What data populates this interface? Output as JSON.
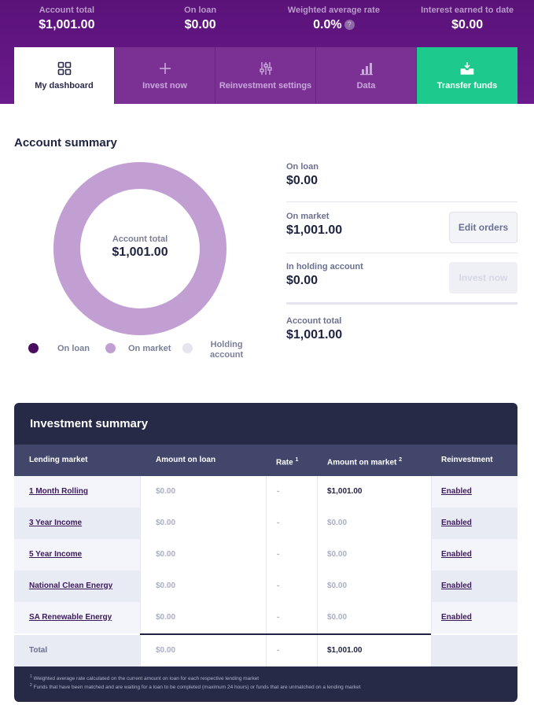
{
  "stats": [
    {
      "label": "Account total",
      "value": "$1,001.00"
    },
    {
      "label": "On loan",
      "value": "$0.00"
    },
    {
      "label": "Weighted average rate",
      "value": "0.0%"
    },
    {
      "label": "Interest earned to date",
      "value": "$0.00"
    }
  ],
  "help_mark": "?",
  "tabs": [
    {
      "label": "My dashboard",
      "icon": "grid-icon"
    },
    {
      "label": "Invest now",
      "icon": "plus-icon"
    },
    {
      "label": "Reinvestment settings",
      "icon": "sliders-icon"
    },
    {
      "label": "Data",
      "icon": "bar-chart-icon"
    },
    {
      "label": "Transfer funds",
      "icon": "inbox-download-icon"
    }
  ],
  "account_summary": {
    "title": "Account summary",
    "donut": {
      "center_label": "Account total",
      "center_value": "$1,001.00",
      "segments": [
        {
          "name": "On loan",
          "value": 0,
          "color": "#4a0c5e"
        },
        {
          "name": "On market",
          "value": 1001,
          "color": "#c19fd2"
        },
        {
          "name": "Holding account",
          "value": 0,
          "color": "#e4e5ee"
        }
      ]
    },
    "legend": {
      "on_loan": "On loan",
      "on_market": "On market",
      "holding_line1": "Holding",
      "holding_line2": "account"
    },
    "rows": [
      {
        "label": "On loan",
        "value": "$0.00"
      },
      {
        "label": "On market",
        "value": "$1,001.00",
        "button": "Edit orders"
      },
      {
        "label": "In holding account",
        "value": "$0.00",
        "button": "Invest now"
      },
      {
        "label": "Account total",
        "value": "$1,001.00"
      }
    ]
  },
  "investment_summary": {
    "title": "Investment summary",
    "headers": {
      "market": "Lending market",
      "amount_on_loan": "Amount on loan",
      "rate": "Rate",
      "rate_sup": "1",
      "amount_on_market": "Amount on market",
      "amount_on_market_sup": "2",
      "reinvestment": "Reinvestment"
    },
    "rows": [
      {
        "market": "1 Month Rolling",
        "on_loan": "$0.00",
        "rate": "-",
        "on_market": "$1,001.00",
        "reinvestment": "Enabled"
      },
      {
        "market": "3 Year Income",
        "on_loan": "$0.00",
        "rate": "-",
        "on_market": "$0.00",
        "reinvestment": "Enabled"
      },
      {
        "market": "5 Year Income",
        "on_loan": "$0.00",
        "rate": "-",
        "on_market": "$0.00",
        "reinvestment": "Enabled"
      },
      {
        "market": "National Clean Energy",
        "on_loan": "$0.00",
        "rate": "-",
        "on_market": "$0.00",
        "reinvestment": "Enabled"
      },
      {
        "market": "SA Renewable Energy",
        "on_loan": "$0.00",
        "rate": "-",
        "on_market": "$0.00",
        "reinvestment": "Enabled"
      }
    ],
    "total": {
      "label": "Total",
      "on_loan": "$0.00",
      "rate": "-",
      "on_market": "$1,001.00"
    },
    "footnotes": [
      {
        "mark": "1",
        "text": "Weighted average rate calculated on the current amount on loan for each respective lending market"
      },
      {
        "mark": "2",
        "text": "Funds that have been matched and are waiting for a loan to be completed (maximum 24 hours) or funds that are unmatched on a lending market"
      }
    ]
  }
}
